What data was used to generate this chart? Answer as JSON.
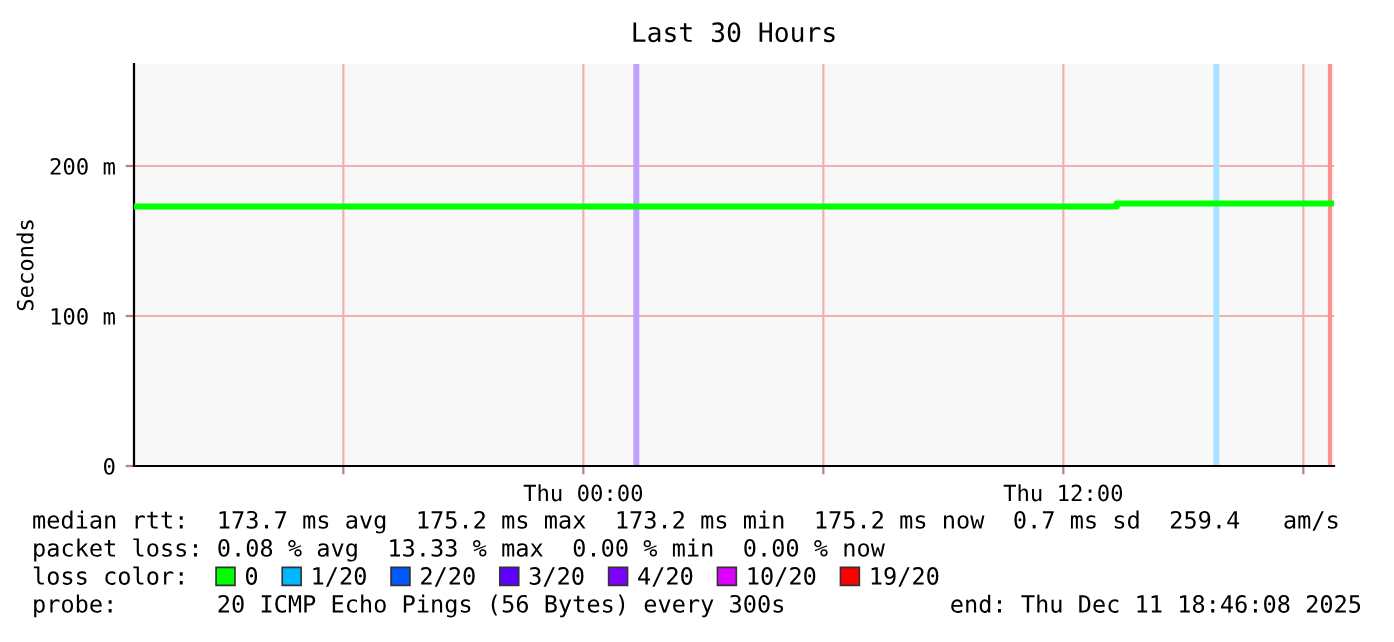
{
  "chart_data": {
    "type": "step",
    "title": "Last 30 Hours",
    "ylabel": "Seconds",
    "xlim": [
      "2025-12-10T12:46",
      "2025-12-11T18:46"
    ],
    "ylim": [
      0,
      268
    ],
    "xticks": [
      {
        "value": "2025-12-10T18:00",
        "label": null
      },
      {
        "value": "2025-12-11T00:00",
        "label": "Thu 00:00"
      },
      {
        "value": "2025-12-11T06:00",
        "label": null
      },
      {
        "value": "2025-12-11T12:00",
        "label": "Thu 12:00"
      },
      {
        "value": "2025-12-11T18:00",
        "label": null
      }
    ],
    "yticks": [
      0,
      {
        "value": 100,
        "label": "100 m"
      },
      {
        "value": 200,
        "label": "200 m"
      }
    ],
    "grid": true,
    "legend": "bottom",
    "legend_title": "loss color:",
    "series": [
      {
        "name": "0",
        "color": "#00ff00",
        "x": [
          "2025-12-10T12:46",
          "2025-12-11T13:20",
          "2025-12-11T18:46"
        ],
        "values": [
          173,
          175,
          175
        ]
      },
      {
        "name": "1/20",
        "color": "#00b8ff"
      },
      {
        "name": "2/20",
        "color": "#0059ff"
      },
      {
        "name": "3/20",
        "color": "#5e00ff"
      },
      {
        "name": "4/20",
        "color": "#7e00ff"
      },
      {
        "name": "10/20",
        "color": "#dd00ff"
      },
      {
        "name": "19/20",
        "color": "#ff0000"
      }
    ],
    "bands": [
      {
        "axis": "x",
        "from": "2025-12-11T01:15",
        "to": "2025-12-11T01:24",
        "color": "#c0a0ff"
      },
      {
        "axis": "x",
        "from": "2025-12-11T15:45",
        "to": "2025-12-11T15:54",
        "color": "#a8e4ff"
      }
    ],
    "ref_lines": [
      {
        "axis": "x",
        "value": "2025-12-11T18:40",
        "color": "#ff9090"
      }
    ],
    "annotations": [
      "median rtt:  173.7 ms avg  175.2 ms max  173.2 ms min  175.2 ms now  0.7 ms sd  259.4   am/s",
      "packet loss: 0.08 % avg  13.33 % max  0.00 % min  0.00 % now",
      "probe:       20 ICMP Echo Pings (56 Bytes) every 300s",
      "end: Thu Dec 11 18:46:08 2025"
    ]
  }
}
